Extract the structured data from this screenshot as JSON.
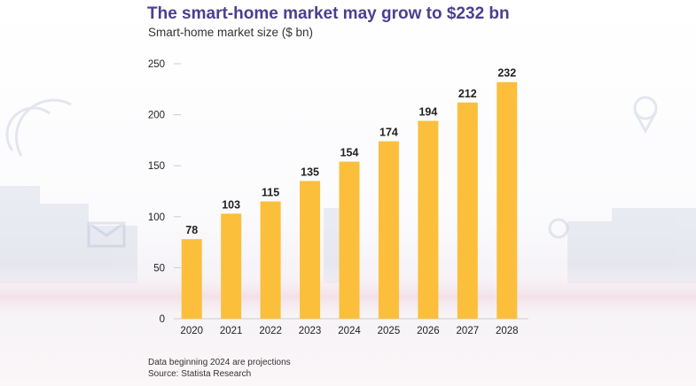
{
  "header": {
    "title": "The smart-home market may grow to $232 bn",
    "subtitle": "Smart-home market size ($ bn)"
  },
  "footer": {
    "note": "Data beginning 2024 are projections",
    "source": "Source: Statista Research"
  },
  "colors": {
    "bar": "#fbbf3c",
    "title": "#4a3f8f",
    "text": "#222222",
    "tick": "#cccccc"
  },
  "chart_data": {
    "type": "bar",
    "title": "The smart-home market may grow to $232 bn",
    "subtitle": "Smart-home market size ($ bn)",
    "categories": [
      "2020",
      "2021",
      "2022",
      "2023",
      "2024",
      "2025",
      "2026",
      "2027",
      "2028"
    ],
    "values": [
      78,
      103,
      115,
      135,
      154,
      174,
      194,
      212,
      232
    ],
    "data_labels": [
      "78",
      "103",
      "115",
      "135",
      "154",
      "174",
      "194",
      "212",
      "232"
    ],
    "yticks": [
      "0",
      "50",
      "100",
      "150",
      "200",
      "250"
    ],
    "ytick_values": [
      0,
      50,
      100,
      150,
      200,
      250
    ],
    "ylim": [
      0,
      250
    ],
    "xlabel": "",
    "ylabel": "",
    "grid": false,
    "legend": "none"
  }
}
